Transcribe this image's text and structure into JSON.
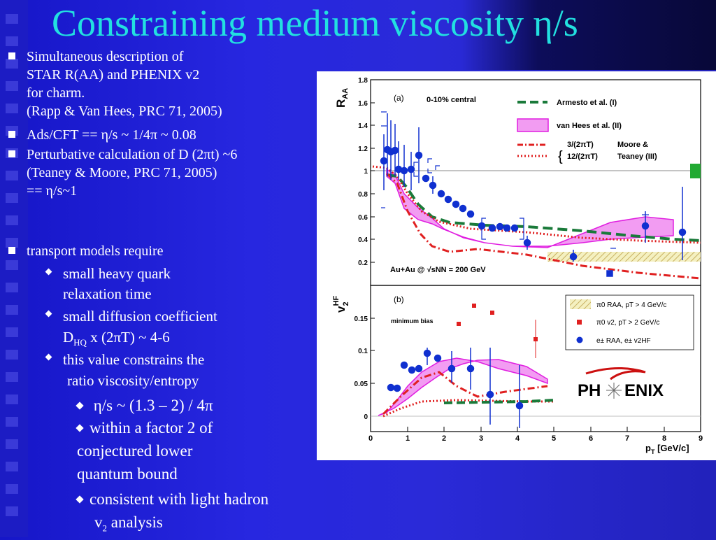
{
  "slide": {
    "title": "Constraining medium viscosity η/s",
    "bullets": {
      "b1_line1": "Simultaneous description of",
      "b1_line2": "STAR R(AA) and PHENIX v2",
      "b1_line3": "for charm.",
      "b1_line4": "(Rapp & Van Hees, PRC 71, 2005)",
      "b2": "Ads/CFT == η/s ~ 1/4π ~ 0.08",
      "b3_line1": "Perturbative calculation of D (2πt) ~6",
      "b3_line2": "(Teaney & Moore, PRC 71, 2005)",
      "b3_line3": "== η/s~1",
      "b4": "transport models require",
      "s1_line1": "small heavy quark",
      "s1_line2": "relaxation time",
      "s2_line1": "small diffusion coefficient",
      "s2_D": "D",
      "s2_sub": "HQ",
      "s2_rest": " x (2πT) ~ 4-6",
      "s3_line1": "this value constrains the",
      "s3_line2": "ratio viscosity/entropy",
      "t1": "η/s ~ (1.3 – 2) / 4π",
      "t2_line1": "within a factor 2 of",
      "t2_line2": "conjectured lower",
      "t2_line3": "quantum bound",
      "t3_line1": "consistent with light hadron",
      "t3_v": "v",
      "t3_sub": "2",
      "t3_rest": " analysis"
    }
  },
  "figure": {
    "panel_a": {
      "label": "(a)",
      "centrality": "0-10% central",
      "system_label": "Au+Au @ √sNN = 200 GeV",
      "ylabel": "R",
      "ylabel_sub": "AA",
      "yticks": [
        "0.2",
        "0.4",
        "0.6",
        "0.8",
        "1",
        "1.2",
        "1.4",
        "1.6",
        "1.8"
      ],
      "legend": {
        "armesto": "Armesto et al. (I)",
        "vanhees": "van Hees et al. (II)",
        "moore_a": "3/(2πT)",
        "moore_b": "12/(2πT)",
        "moore_name1": "Moore &",
        "moore_name2": "Teaney (III)"
      }
    },
    "panel_b": {
      "label": "(b)",
      "centrality": "minimum bias",
      "ylabel": "v",
      "ylabel_sub": "2",
      "ylabel_sup": "HF",
      "yticks": [
        "0",
        "0.05",
        "0.1",
        "0.15"
      ],
      "legend": {
        "pi0_raa": "π0 RAA, pT > 4 GeV/c",
        "pi0_v2": "π0 v2, pT > 2 GeV/c",
        "e_raa": "e± RAA, e± v2HF"
      },
      "logo_left": "PH",
      "logo_right": "ENIX"
    },
    "xaxis": {
      "ticks": [
        "0",
        "1",
        "2",
        "3",
        "4",
        "5",
        "6",
        "7",
        "8",
        "9"
      ],
      "label": "p",
      "label_sub": "T",
      "label_rest": " [GeV/c]"
    },
    "colors": {
      "armesto": "#1a7a3a",
      "vanhees_fill": "#f29cf2",
      "vanhees_line": "#e01ee0",
      "moore": "#e02020",
      "data": "#1030d0",
      "green_box": "#22aa33"
    }
  }
}
